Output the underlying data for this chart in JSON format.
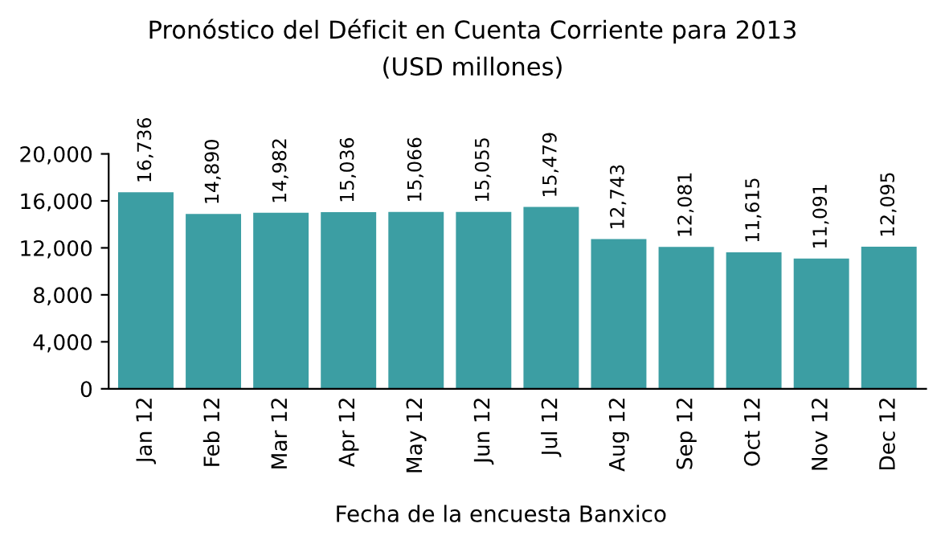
{
  "chart_data": {
    "type": "bar",
    "title": "Pronóstico del Déficit en Cuenta Corriente para 2013",
    "subtitle": "(USD millones)",
    "xlabel": "Fecha de la encuesta Banxico",
    "categories": [
      "Jan 12",
      "Feb 12",
      "Mar 12",
      "Apr 12",
      "May 12",
      "Jun 12",
      "Jul 12",
      "Aug 12",
      "Sep 12",
      "Oct 12",
      "Nov 12",
      "Dec 12"
    ],
    "values": [
      16736,
      14890,
      14982,
      15036,
      15066,
      15055,
      15479,
      12743,
      12081,
      11615,
      11091,
      12095
    ],
    "value_labels": [
      "16,736",
      "14,890",
      "14,982",
      "15,036",
      "15,066",
      "15,055",
      "15,479",
      "12,743",
      "12,081",
      "11,615",
      "11,091",
      "12,095"
    ],
    "color": "#3c9ea3",
    "ylim": [
      0,
      20000
    ],
    "yticks": [
      {
        "value": 0,
        "label": "0"
      },
      {
        "value": 4000,
        "label": "4,000"
      },
      {
        "value": 8000,
        "label": "8,000"
      },
      {
        "value": 12000,
        "label": "12,000"
      },
      {
        "value": 16000,
        "label": "16,000"
      },
      {
        "value": 20000,
        "label": "20,000"
      }
    ],
    "grid": false
  }
}
